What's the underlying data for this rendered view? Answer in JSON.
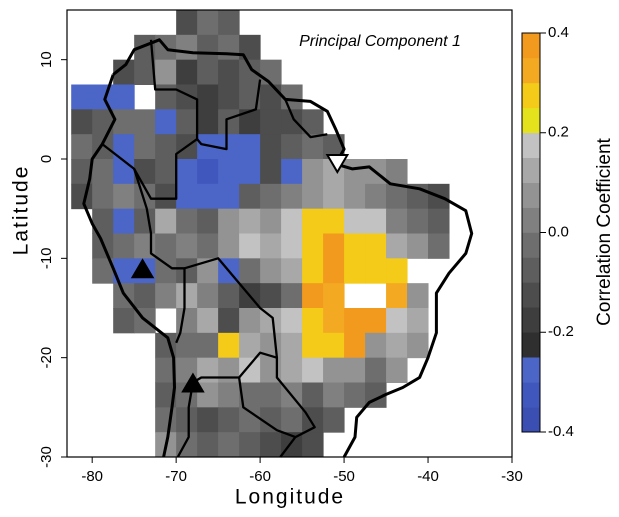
{
  "chart_data": {
    "type": "heatmap",
    "annotation": "Principal Component 1",
    "x_label": "Longitude",
    "y_label": "Latitude",
    "colorbar_label": "Correlation Coefficient",
    "xlim": [
      -83,
      -30
    ],
    "ylim": [
      -30,
      15
    ],
    "xticks": [
      -80,
      -70,
      -60,
      -50,
      -40,
      -30
    ],
    "yticks": [
      -30,
      -20,
      -10,
      0,
      10
    ],
    "clim": [
      -0.4,
      0.4
    ],
    "cticks": [
      -0.4,
      -0.2,
      {
        "value": 0,
        "label": "0.0"
      },
      0.2,
      0.4
    ],
    "colors": [
      "#3b4fb3",
      "#4057be",
      "#4b66c6",
      "#2f2f2f",
      "#3e3e3e",
      "#4d4d4d",
      "#5e5e5e",
      "#6e6e6e",
      "#808080",
      "#939393",
      "#a8a8a8",
      "#c2c2c2",
      "#e4e21c",
      "#f3cb18",
      "#f4a923",
      "#f29a1e"
    ],
    "x": [
      -81.25,
      -78.75,
      -76.25,
      -73.75,
      -71.25,
      -68.75,
      -66.25,
      -63.75,
      -61.25,
      -58.75,
      -56.25,
      -53.75,
      -51.25,
      -48.75,
      -46.25,
      -43.75,
      -41.25,
      -38.75,
      -36.25,
      -33.75,
      -31.25
    ],
    "y": [
      13.75,
      11.25,
      8.75,
      6.25,
      3.75,
      1.25,
      -1.25,
      -3.75,
      -6.25,
      -8.75,
      -11.25,
      -13.75,
      -16.25,
      -18.75,
      -21.25,
      -23.75,
      -26.25,
      -28.75
    ],
    "values": [
      [
        null,
        null,
        null,
        null,
        null,
        -0.15,
        -0.05,
        -0.1,
        null,
        null,
        null,
        null,
        null,
        null,
        null,
        null,
        null,
        null,
        null,
        null,
        null
      ],
      [
        null,
        null,
        null,
        -0.1,
        -0.05,
        0.0,
        -0.1,
        -0.05,
        -0.15,
        null,
        null,
        null,
        null,
        null,
        null,
        null,
        null,
        null,
        null,
        null,
        null
      ],
      [
        null,
        null,
        -0.15,
        -0.1,
        0.05,
        -0.2,
        -0.1,
        -0.15,
        -0.1,
        -0.05,
        null,
        null,
        null,
        null,
        null,
        null,
        null,
        null,
        null,
        null,
        null
      ],
      [
        -0.3,
        -0.3,
        -0.28,
        null,
        -0.1,
        -0.15,
        -0.2,
        -0.15,
        -0.1,
        -0.15,
        -0.05,
        null,
        null,
        null,
        null,
        null,
        null,
        null,
        null,
        null,
        null
      ],
      [
        -0.15,
        -0.1,
        -0.05,
        -0.05,
        -0.26,
        -0.1,
        -0.2,
        -0.1,
        -0.2,
        -0.15,
        -0.15,
        -0.1,
        null,
        null,
        null,
        null,
        null,
        null,
        null,
        null,
        null
      ],
      [
        -0.05,
        -0.1,
        -0.28,
        -0.05,
        -0.1,
        -0.15,
        -0.3,
        -0.3,
        -0.28,
        -0.15,
        -0.1,
        -0.05,
        -0.1,
        null,
        null,
        null,
        null,
        null,
        null,
        null,
        null
      ],
      [
        -0.1,
        -0.05,
        -0.28,
        -0.15,
        -0.1,
        -0.3,
        -0.32,
        -0.3,
        -0.28,
        -0.15,
        -0.26,
        0.05,
        0.1,
        0.05,
        0.05,
        0.0,
        null,
        null,
        null,
        null,
        null
      ],
      [
        -0.15,
        -0.05,
        0.0,
        -0.05,
        -0.15,
        -0.3,
        -0.3,
        -0.28,
        -0.1,
        -0.05,
        0.0,
        0.05,
        0.1,
        0.05,
        0.0,
        -0.05,
        -0.1,
        -0.15,
        null,
        null,
        null
      ],
      [
        null,
        -0.1,
        -0.28,
        -0.1,
        0.1,
        -0.05,
        -0.1,
        0.05,
        0.1,
        0.05,
        0.15,
        0.3,
        0.25,
        0.15,
        0.15,
        0.0,
        -0.05,
        -0.1,
        null,
        null,
        null
      ],
      [
        null,
        -0.1,
        -0.05,
        0.0,
        -0.05,
        0.0,
        -0.05,
        0.05,
        0.15,
        0.1,
        0.15,
        0.28,
        0.35,
        0.3,
        0.3,
        0.1,
        0.05,
        -0.05,
        null,
        null,
        null
      ],
      [
        null,
        -0.05,
        -0.28,
        -0.3,
        -0.05,
        -0.1,
        0.05,
        -0.28,
        -0.05,
        0.05,
        0.1,
        0.28,
        0.35,
        0.3,
        0.3,
        0.28,
        null,
        null,
        null,
        null,
        null
      ],
      [
        null,
        null,
        -0.05,
        -0.1,
        0.0,
        0.1,
        0.0,
        -0.1,
        -0.2,
        -0.15,
        -0.05,
        0.36,
        0.33,
        null,
        null,
        0.32,
        0.05,
        null,
        null,
        null,
        null
      ],
      [
        null,
        null,
        -0.1,
        -0.05,
        null,
        0.0,
        0.1,
        -0.15,
        0.05,
        0.1,
        0.15,
        0.28,
        0.32,
        0.35,
        0.35,
        0.15,
        0.1,
        null,
        null,
        null,
        null
      ],
      [
        null,
        null,
        null,
        null,
        -0.1,
        -0.05,
        -0.05,
        0.28,
        0.1,
        0.05,
        0.1,
        0.3,
        0.3,
        0.35,
        0.05,
        0.1,
        0.05,
        null,
        null,
        null,
        null
      ],
      [
        null,
        null,
        null,
        null,
        -0.05,
        0.0,
        0.1,
        0.05,
        0.15,
        0.05,
        0.1,
        0.15,
        0.05,
        0.05,
        -0.05,
        0.05,
        null,
        null,
        null,
        null,
        null
      ],
      [
        null,
        null,
        null,
        null,
        -0.1,
        -0.05,
        0.05,
        0.0,
        -0.05,
        -0.05,
        0.0,
        -0.1,
        0.0,
        -0.05,
        -0.1,
        null,
        null,
        null,
        null,
        null,
        null
      ],
      [
        null,
        null,
        null,
        null,
        -0.05,
        -0.1,
        -0.15,
        -0.1,
        -0.05,
        -0.1,
        -0.05,
        -0.15,
        -0.1,
        null,
        null,
        null,
        null,
        null,
        null,
        null,
        null
      ],
      [
        null,
        null,
        null,
        null,
        0.05,
        -0.05,
        -0.1,
        -0.05,
        -0.1,
        -0.15,
        -0.2,
        -0.15,
        null,
        null,
        null,
        null,
        null,
        null,
        null,
        null,
        null
      ]
    ]
  }
}
